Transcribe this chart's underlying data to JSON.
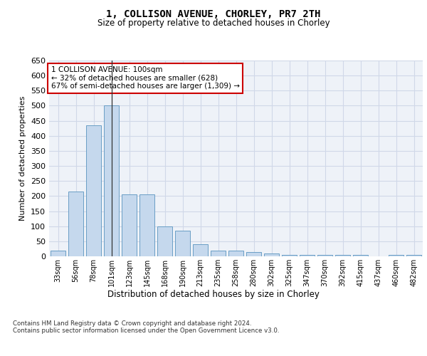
{
  "title": "1, COLLISON AVENUE, CHORLEY, PR7 2TH",
  "subtitle": "Size of property relative to detached houses in Chorley",
  "xlabel": "Distribution of detached houses by size in Chorley",
  "ylabel": "Number of detached properties",
  "footnote": "Contains HM Land Registry data © Crown copyright and database right 2024.\nContains public sector information licensed under the Open Government Licence v3.0.",
  "categories": [
    "33sqm",
    "56sqm",
    "78sqm",
    "101sqm",
    "123sqm",
    "145sqm",
    "168sqm",
    "190sqm",
    "213sqm",
    "235sqm",
    "258sqm",
    "280sqm",
    "302sqm",
    "325sqm",
    "347sqm",
    "370sqm",
    "392sqm",
    "415sqm",
    "437sqm",
    "460sqm",
    "482sqm"
  ],
  "values": [
    20,
    215,
    435,
    500,
    205,
    205,
    100,
    85,
    40,
    20,
    20,
    15,
    10,
    5,
    5,
    5,
    5,
    5,
    0,
    5,
    5
  ],
  "bar_color": "#c5d8ed",
  "bar_edge_color": "#6a9ec5",
  "highlight_index": 3,
  "highlight_line_color": "#333333",
  "ylim": [
    0,
    650
  ],
  "yticks": [
    0,
    50,
    100,
    150,
    200,
    250,
    300,
    350,
    400,
    450,
    500,
    550,
    600,
    650
  ],
  "annotation_box_text": "1 COLLISON AVENUE: 100sqm\n← 32% of detached houses are smaller (628)\n67% of semi-detached houses are larger (1,309) →",
  "annotation_box_color": "#ffffff",
  "annotation_box_edge_color": "#cc0000",
  "grid_color": "#d0d8e8",
  "background_color": "#eef2f8",
  "fig_background": "#ffffff"
}
